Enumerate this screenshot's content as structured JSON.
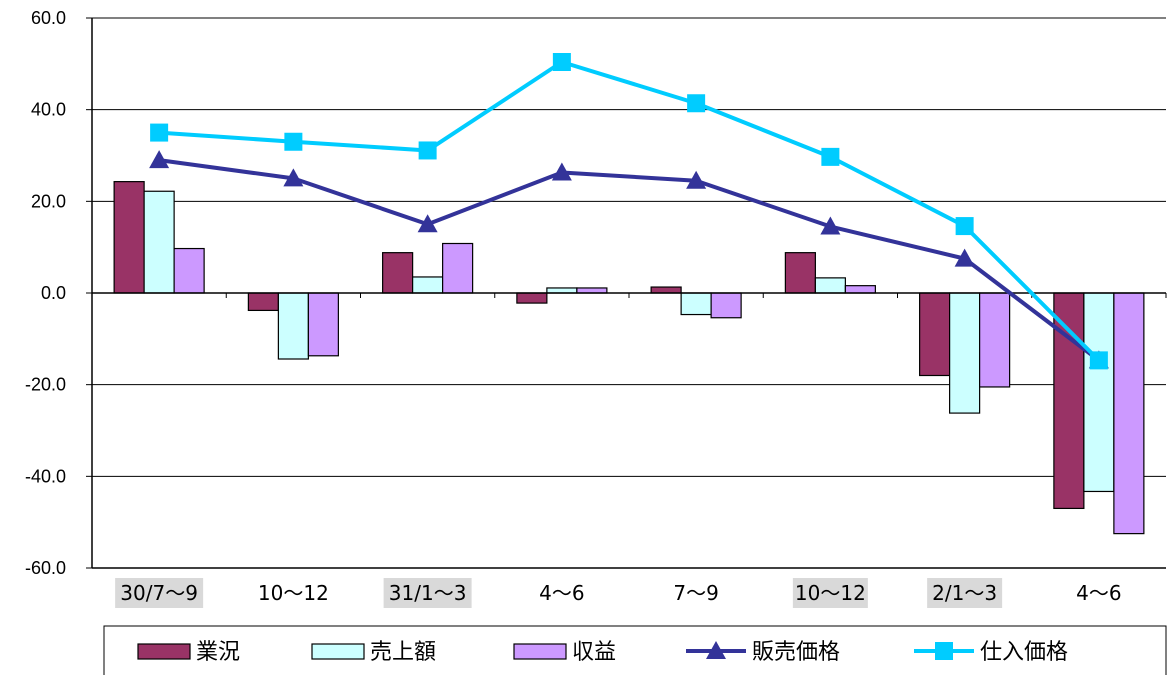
{
  "chart_data": {
    "type": "bar",
    "categories": [
      "30/7～9",
      "10～12",
      "31/1～3",
      "4～6",
      "7～9",
      "10～12",
      "2/1～3",
      "4～6"
    ],
    "highlighted_categories": [
      0,
      2,
      5,
      6
    ],
    "ylim": [
      -60,
      60
    ],
    "yticks": [
      60,
      40,
      20,
      0,
      -20,
      -40,
      -60
    ],
    "ytick_labels": [
      "60.0",
      "40.0",
      "20.0",
      "0.0",
      "-20.0",
      "-40.0",
      "-60.0"
    ],
    "grid": true,
    "legend_position": "bottom",
    "series": [
      {
        "name": "業況",
        "type": "bar",
        "color": "#993366",
        "values": [
          24.3,
          -3.8,
          8.8,
          -2.2,
          1.3,
          8.8,
          -18.0,
          -47.0
        ]
      },
      {
        "name": "売上額",
        "type": "bar",
        "color": "#ccffff",
        "values": [
          22.2,
          -14.4,
          3.5,
          1.1,
          -4.7,
          3.3,
          -26.2,
          -43.3
        ]
      },
      {
        "name": "収益",
        "type": "bar",
        "color": "#cc99ff",
        "values": [
          9.7,
          -13.7,
          10.8,
          1.1,
          -5.4,
          1.6,
          -20.5,
          -52.5
        ]
      },
      {
        "name": "販売価格",
        "type": "line",
        "marker": "triangle",
        "color": "#333399",
        "values": [
          29.0,
          25.0,
          15.0,
          26.3,
          24.5,
          14.5,
          7.5,
          -14.7
        ]
      },
      {
        "name": "仕入価格",
        "type": "line",
        "marker": "square",
        "color": "#00ccff",
        "values": [
          35.0,
          33.0,
          31.1,
          50.4,
          41.4,
          29.7,
          14.6,
          -14.7
        ]
      }
    ]
  }
}
